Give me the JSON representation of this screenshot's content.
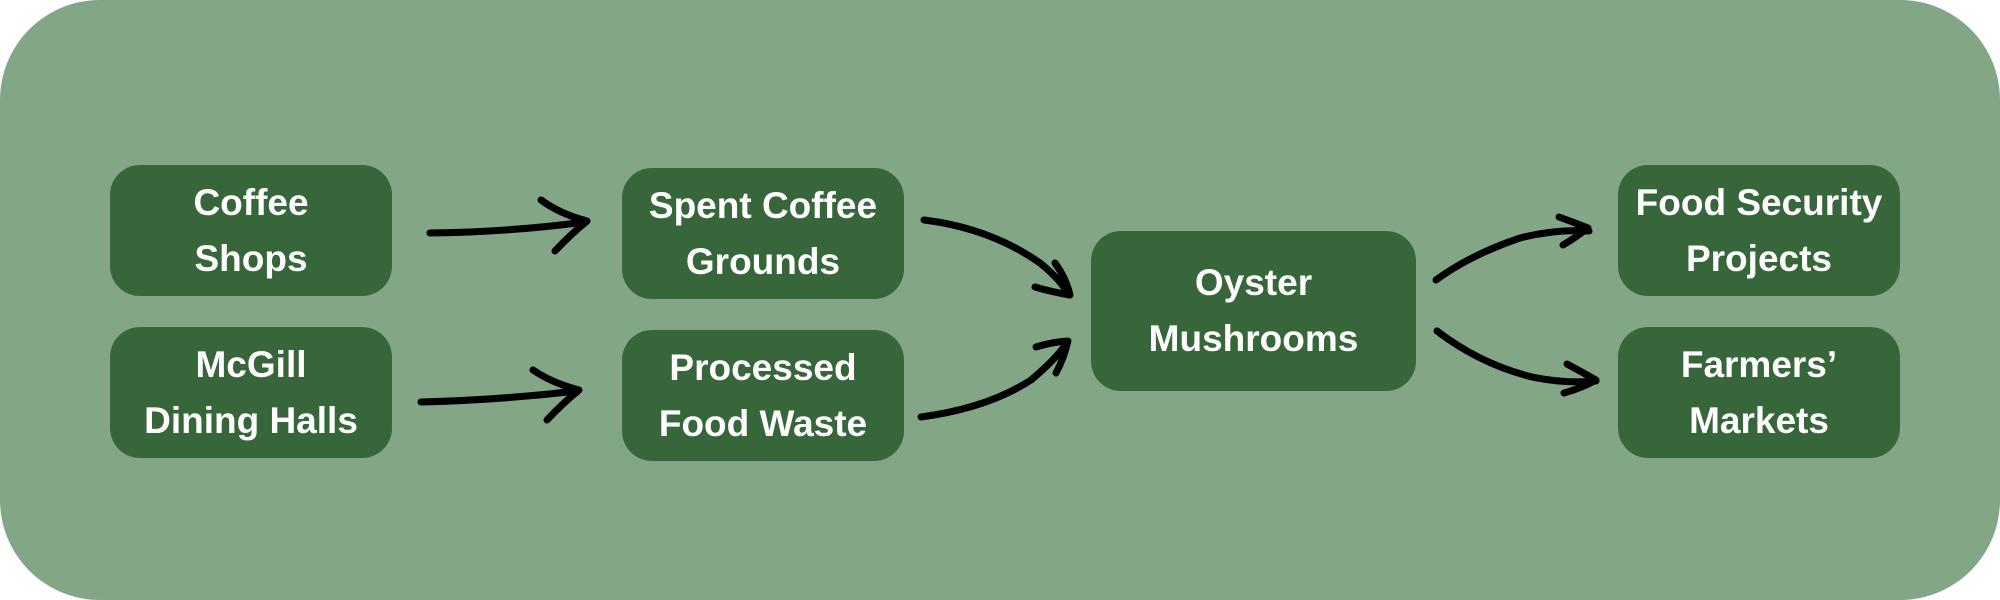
{
  "diagram": {
    "background_color": "#82a686",
    "node_color": "#37663a",
    "text_color": "#ffffff",
    "arrow_color": "#000000",
    "nodes": [
      {
        "id": "coffee-shops",
        "lines": [
          "Coffee",
          "Shops"
        ]
      },
      {
        "id": "mcgill-dining-halls",
        "lines": [
          "McGill",
          "Dining Halls"
        ]
      },
      {
        "id": "spent-coffee-grounds",
        "lines": [
          "Spent Coffee",
          "Grounds"
        ]
      },
      {
        "id": "processed-food-waste",
        "lines": [
          "Processed",
          "Food Waste"
        ]
      },
      {
        "id": "oyster-mushrooms",
        "lines": [
          "Oyster",
          "Mushrooms"
        ]
      },
      {
        "id": "food-security-projects",
        "lines": [
          "Food Security",
          "Projects"
        ]
      },
      {
        "id": "farmers-markets",
        "lines": [
          "Farmers’",
          "Markets"
        ]
      }
    ],
    "edges": [
      {
        "from": "coffee-shops",
        "to": "spent-coffee-grounds"
      },
      {
        "from": "mcgill-dining-halls",
        "to": "processed-food-waste"
      },
      {
        "from": "spent-coffee-grounds",
        "to": "oyster-mushrooms"
      },
      {
        "from": "processed-food-waste",
        "to": "oyster-mushrooms"
      },
      {
        "from": "oyster-mushrooms",
        "to": "food-security-projects"
      },
      {
        "from": "oyster-mushrooms",
        "to": "farmers-markets"
      }
    ]
  }
}
